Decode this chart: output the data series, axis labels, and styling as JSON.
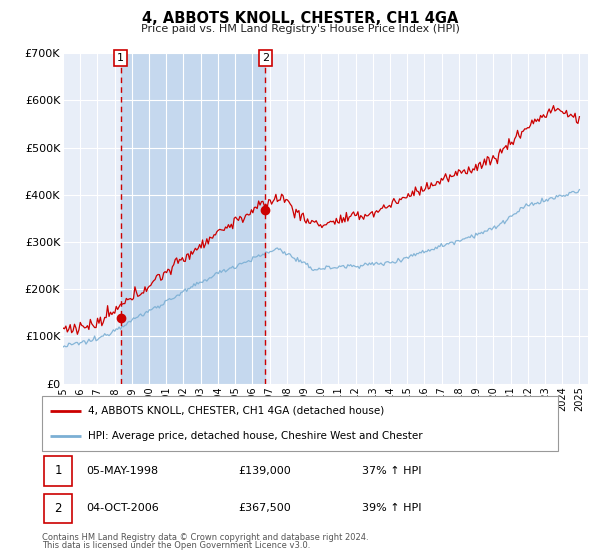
{
  "title": "4, ABBOTS KNOLL, CHESTER, CH1 4GA",
  "subtitle": "Price paid vs. HM Land Registry's House Price Index (HPI)",
  "ylim": [
    0,
    700000
  ],
  "yticks": [
    0,
    100000,
    200000,
    300000,
    400000,
    500000,
    600000,
    700000
  ],
  "ytick_labels": [
    "£0",
    "£100K",
    "£200K",
    "£300K",
    "£400K",
    "£500K",
    "£600K",
    "£700K"
  ],
  "xlim_start": 1995.0,
  "xlim_end": 2025.5,
  "hpi_color": "#7bafd4",
  "price_color": "#cc0000",
  "plot_bg_color": "#e8eef8",
  "grid_color": "#ffffff",
  "vspan_color": "#c5d8ee",
  "sale1_date": 1998.35,
  "sale1_price": 139000,
  "sale1_label": "1",
  "sale1_display": "05-MAY-1998",
  "sale1_amount": "£139,000",
  "sale1_hpi": "37% ↑ HPI",
  "sale2_date": 2006.75,
  "sale2_price": 367500,
  "sale2_label": "2",
  "sale2_display": "04-OCT-2006",
  "sale2_amount": "£367,500",
  "sale2_hpi": "39% ↑ HPI",
  "legend_line1": "4, ABBOTS KNOLL, CHESTER, CH1 4GA (detached house)",
  "legend_line2": "HPI: Average price, detached house, Cheshire West and Chester",
  "footer1": "Contains HM Land Registry data © Crown copyright and database right 2024.",
  "footer2": "This data is licensed under the Open Government Licence v3.0."
}
